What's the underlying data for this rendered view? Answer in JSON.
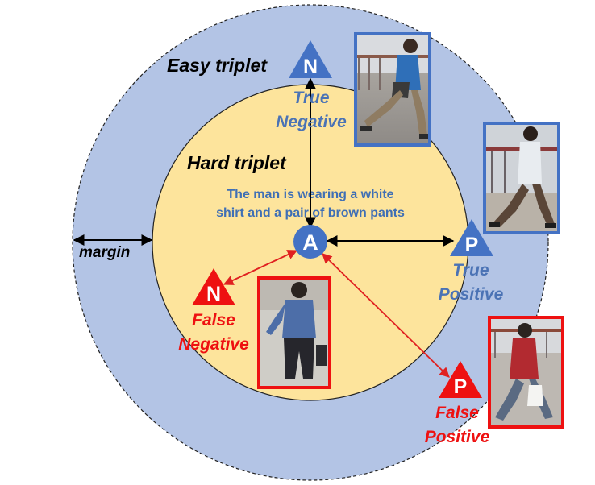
{
  "labels": {
    "easy_triplet": "Easy triplet",
    "hard_triplet": "Hard triplet",
    "margin": "margin",
    "caption_line1": "The man is wearing a white",
    "caption_line2": "shirt and a pair of brown pants"
  },
  "markers": {
    "anchor": "A",
    "true_negative": "N",
    "false_negative": "N",
    "true_positive": "P",
    "false_positive": "P"
  },
  "categories": {
    "true_negative": [
      "True",
      "Negative"
    ],
    "false_negative": [
      "False",
      "Negative"
    ],
    "true_positive": [
      "True",
      "Positive"
    ],
    "false_positive": [
      "False",
      "Positive"
    ]
  },
  "colors": {
    "outer_ring": "#b3c4e5",
    "inner_circle": "#fde49c",
    "blue": "#4472c4",
    "red": "#ee1111"
  }
}
